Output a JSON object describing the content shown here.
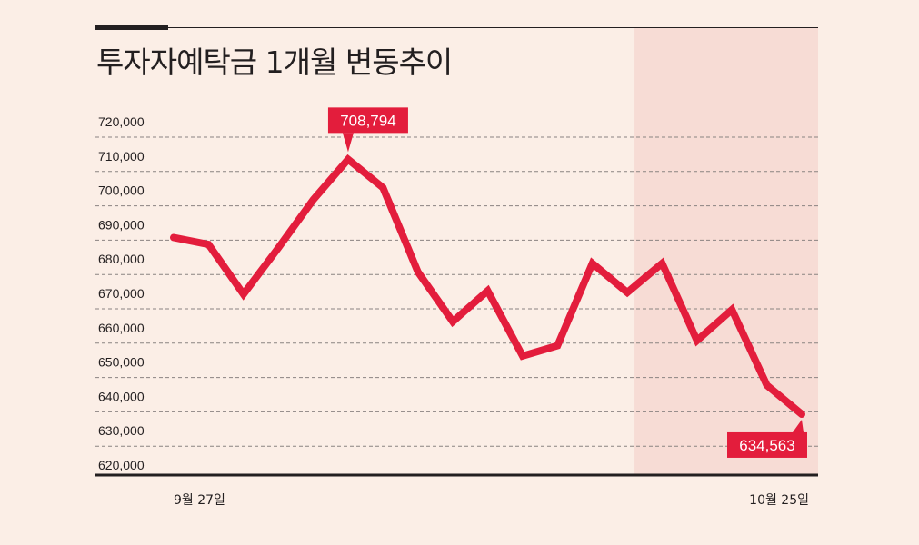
{
  "title": "투자자예탁금 1개월 변동추이",
  "colors": {
    "background": "#fbeee6",
    "highlight_band": "#f7dcd5",
    "line": "#e31d3c",
    "text": "#231f20"
  },
  "chart_data": {
    "type": "line",
    "title": "투자자예탁금 1개월 변동추이",
    "xlabel": "",
    "ylabel": "",
    "ylim": [
      620000,
      720000
    ],
    "ytick_labels": [
      "720,000",
      "710,000",
      "700,000",
      "690,000",
      "680,000",
      "670,000",
      "660,000",
      "650,000",
      "640,000",
      "630,000",
      "620,000"
    ],
    "xtick_labels": [
      "9월 27일",
      "10월 25일"
    ],
    "grid": true,
    "highlight_band_from_index": 13,
    "series": [
      {
        "values": [
          686000,
          684000,
          669500,
          683000,
          697000,
          708794,
          700500,
          676000,
          661500,
          670500,
          651500,
          654500,
          678500,
          670000,
          678500,
          656000,
          665000,
          643000,
          634563
        ]
      }
    ],
    "annotations": [
      {
        "index": 5,
        "text": "708,794"
      },
      {
        "index": 18,
        "text": "634,563"
      }
    ]
  }
}
